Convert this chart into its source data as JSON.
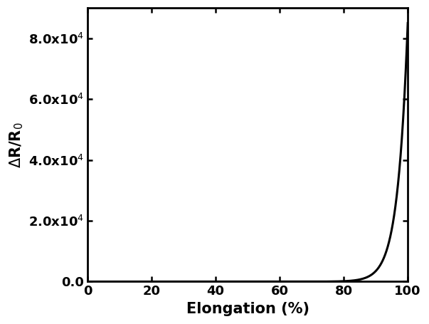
{
  "xlabel": "Elongation (%)",
  "ylabel": "$\\Delta$R/R$_0$",
  "xlim": [
    0,
    100
  ],
  "ylim": [
    0,
    90000
  ],
  "xticks": [
    0,
    20,
    40,
    60,
    80,
    100
  ],
  "ytick_values": [
    0,
    20000,
    40000,
    60000,
    80000
  ],
  "ytick_labels": [
    "0.0",
    "2.0x10$^4$",
    "4.0x10$^4$",
    "6.0x10$^4$",
    "8.0x10$^4$"
  ],
  "line_color": "#000000",
  "line_width": 2.2,
  "background_color": "#ffffff",
  "xlabel_fontsize": 15,
  "ylabel_fontsize": 15,
  "tick_fontsize": 13,
  "figsize": [
    6.03,
    4.55
  ],
  "dpi": 100,
  "curve_k": 0.32,
  "curve_x0": 75,
  "curve_ymax": 85000
}
